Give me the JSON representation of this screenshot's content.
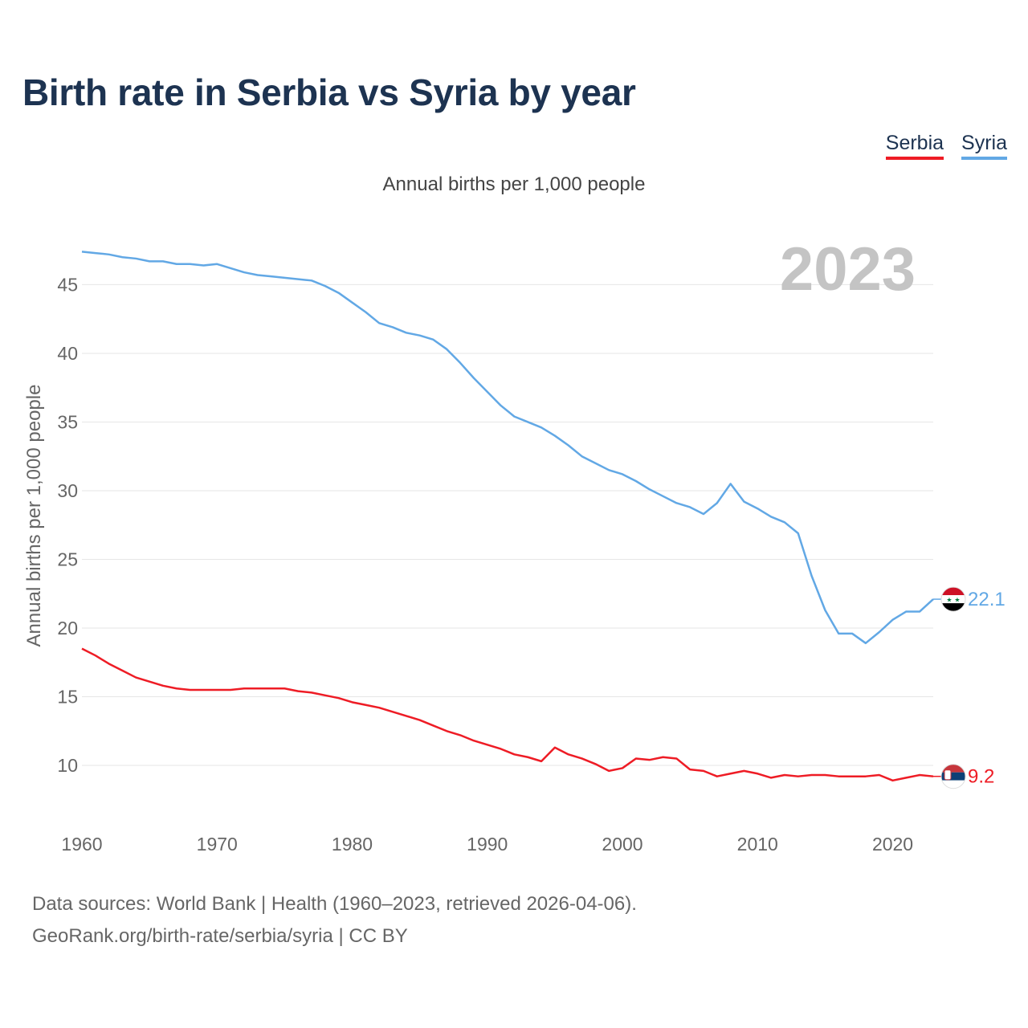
{
  "page": {
    "title": "Birth rate in Serbia vs Syria by year",
    "subtitle": "Annual births per 1,000 people",
    "year_label": "2023",
    "footer_line1": "Data sources: World Bank | Health (1960–2023, retrieved 2026-04-06).",
    "footer_line2": "GeoRank.org/birth-rate/serbia/syria | CC BY"
  },
  "legend": [
    {
      "label": "Serbia",
      "color": "#ee1c25"
    },
    {
      "label": "Syria",
      "color": "#62a8e5"
    }
  ],
  "chart_data": {
    "type": "line",
    "title": "Birth rate in Serbia vs Syria by year",
    "xlabel": "",
    "ylabel": "Annual births per 1,000 people",
    "xlim": [
      1960,
      2023
    ],
    "ylim": [
      6.2,
      48.3
    ],
    "xticks": [
      1960,
      1970,
      1980,
      1990,
      2000,
      2010,
      2020
    ],
    "yticks": [
      10,
      15,
      20,
      25,
      30,
      35,
      40,
      45
    ],
    "grid": true,
    "x": [
      1960,
      1961,
      1962,
      1963,
      1964,
      1965,
      1966,
      1967,
      1968,
      1969,
      1970,
      1971,
      1972,
      1973,
      1974,
      1975,
      1976,
      1977,
      1978,
      1979,
      1980,
      1981,
      1982,
      1983,
      1984,
      1985,
      1986,
      1987,
      1988,
      1989,
      1990,
      1991,
      1992,
      1993,
      1994,
      1995,
      1996,
      1997,
      1998,
      1999,
      2000,
      2001,
      2002,
      2003,
      2004,
      2005,
      2006,
      2007,
      2008,
      2009,
      2010,
      2011,
      2012,
      2013,
      2014,
      2015,
      2016,
      2017,
      2018,
      2019,
      2020,
      2021,
      2022,
      2023
    ],
    "series": [
      {
        "name": "Serbia",
        "color": "#ee1c25",
        "end_label": "9.2",
        "values": [
          18.5,
          18.0,
          17.4,
          16.9,
          16.4,
          16.1,
          15.8,
          15.6,
          15.5,
          15.5,
          15.5,
          15.5,
          15.6,
          15.6,
          15.6,
          15.6,
          15.4,
          15.3,
          15.1,
          14.9,
          14.6,
          14.4,
          14.2,
          13.9,
          13.6,
          13.3,
          12.9,
          12.5,
          12.2,
          11.8,
          11.5,
          11.2,
          10.8,
          10.6,
          10.3,
          11.3,
          10.8,
          10.5,
          10.1,
          9.6,
          9.8,
          10.5,
          10.4,
          10.6,
          10.5,
          9.7,
          9.6,
          9.2,
          9.4,
          9.6,
          9.4,
          9.1,
          9.3,
          9.2,
          9.3,
          9.3,
          9.2,
          9.2,
          9.2,
          9.3,
          8.9,
          9.1,
          9.3,
          9.2
        ]
      },
      {
        "name": "Syria",
        "color": "#62a8e5",
        "end_label": "22.1",
        "values": [
          47.4,
          47.3,
          47.2,
          47.0,
          46.9,
          46.7,
          46.7,
          46.5,
          46.5,
          46.4,
          46.5,
          46.2,
          45.9,
          45.7,
          45.6,
          45.5,
          45.4,
          45.3,
          44.9,
          44.4,
          43.7,
          43.0,
          42.2,
          41.9,
          41.5,
          41.3,
          41.0,
          40.3,
          39.3,
          38.2,
          37.2,
          36.2,
          35.4,
          35.0,
          34.6,
          34.0,
          33.3,
          32.5,
          32.0,
          31.5,
          31.2,
          30.7,
          30.1,
          29.6,
          29.1,
          28.8,
          28.3,
          29.1,
          30.5,
          29.2,
          28.7,
          28.1,
          27.7,
          26.9,
          23.8,
          21.3,
          19.6,
          19.6,
          18.9,
          19.7,
          20.6,
          21.2,
          21.2,
          22.1
        ]
      }
    ]
  }
}
